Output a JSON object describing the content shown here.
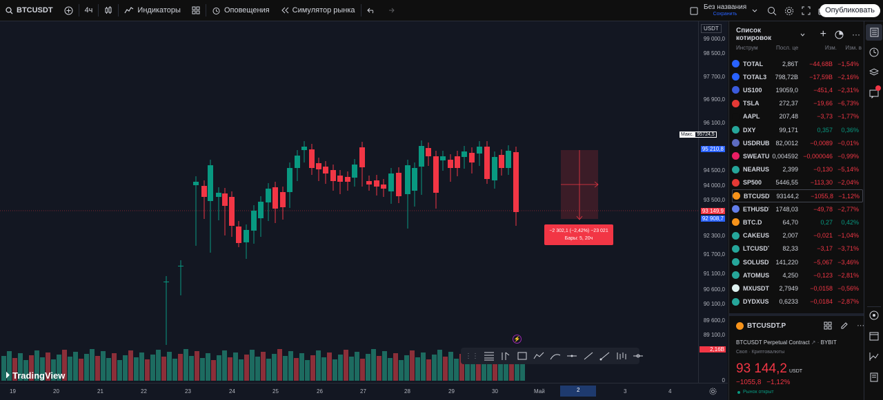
{
  "topbar": {
    "symbol": "BTCUSDT",
    "interval": "4ч",
    "indicators": "Индикаторы",
    "alerts": "Оповещения",
    "replay": "Симулятор рынка",
    "layout_name": "Без названия",
    "layout_status": "Сохранить",
    "publish": "Опубликовать"
  },
  "chart": {
    "currency": "USDT",
    "max_label": "Макс.",
    "max_value": "95724,5",
    "price_labels": [
      "99 000,0",
      "98 500,0",
      "97 700,0",
      "96 900,0",
      "96 100,0",
      "95 210,8",
      "94 500,0",
      "94 000,0",
      "93 500,0",
      "93 149,9",
      "92 908,7",
      "92 300,0",
      "91 700,0",
      "91 100,0",
      "90 600,0",
      "90 100,0",
      "89 600,0",
      "89 100,0"
    ],
    "volume_label": "2,16B",
    "volume_zero": "0",
    "time_labels": [
      "19",
      "20",
      "21",
      "22",
      "23",
      "24",
      "25",
      "26",
      "27",
      "28",
      "29",
      "30",
      "Май",
      "2",
      "3",
      "4"
    ],
    "measure_line1": "−2 302,1 (−2,42%) −23 021",
    "measure_line2": "Бары: 5, 20ч",
    "logo": "TradingView"
  },
  "watchlist": {
    "title": "Список котировок",
    "headers": [
      "Инструм",
      "Посл. це",
      "Изм.",
      "Изм. в"
    ],
    "rows": [
      {
        "sym": "TOTAL",
        "last": "2,86T",
        "chg": "−44,68B",
        "chp": "−1,54%",
        "color": "#2962ff",
        "dir": "neg"
      },
      {
        "sym": "TOTAL3",
        "last": "798,72B",
        "chg": "−17,59B",
        "chp": "−2,16%",
        "color": "#2962ff",
        "dir": "neg"
      },
      {
        "sym": "US100",
        "last": "19059,0",
        "chg": "−451,4",
        "chp": "−2,31%",
        "color": "#3b5bdb",
        "dir": "neg"
      },
      {
        "sym": "TSLA",
        "last": "272,37",
        "chg": "−19,66",
        "chp": "−6,73%",
        "color": "#e53935",
        "dir": "neg"
      },
      {
        "sym": "AAPL",
        "last": "207,48",
        "chg": "−3,73",
        "chp": "−1,77%",
        "color": "#0f0f0f",
        "dir": "neg"
      },
      {
        "sym": "DXY",
        "last": "99,171",
        "chg": "0,357",
        "chp": "0,36%",
        "color": "#26a69a",
        "dir": "pos"
      },
      {
        "sym": "USDRUB",
        "last": "82,0012",
        "chg": "−0,0089",
        "chp": "−0,01%",
        "color": "#5c6bc0",
        "dir": "neg"
      },
      {
        "sym": "SWEATUSDT",
        "last": "0,004592",
        "chg": "−0,000046",
        "chp": "−0,99%",
        "color": "#e91e63",
        "dir": "neg"
      },
      {
        "sym": "NEARUSDT",
        "last": "2,399",
        "chg": "−0,130",
        "chp": "−5,14%",
        "color": "#26a69a",
        "dir": "neg"
      },
      {
        "sym": "SP500",
        "last": "5446,55",
        "chg": "−113,30",
        "chp": "−2,04%",
        "color": "#e53935",
        "dir": "neg"
      },
      {
        "sym": "BTCUSDT",
        "last": "93144,2",
        "chg": "−1055,8",
        "chp": "−1,12%",
        "color": "#f7931a",
        "dir": "neg"
      },
      {
        "sym": "ETHUSDT",
        "last": "1748,03",
        "chg": "−49,78",
        "chp": "−2,77%",
        "color": "#627eea",
        "dir": "neg"
      },
      {
        "sym": "BTC.D",
        "last": "64,70",
        "chg": "0,27",
        "chp": "0,42%",
        "color": "#f7931a",
        "dir": "pos"
      },
      {
        "sym": "CAKEUSDT",
        "last": "2,007",
        "chg": "−0,021",
        "chp": "−1,04%",
        "color": "#26a69a",
        "dir": "neg"
      },
      {
        "sym": "LTCUSDT",
        "last": "82,33",
        "chg": "−3,17",
        "chp": "−3,71%",
        "color": "#26a69a",
        "dir": "neg"
      },
      {
        "sym": "SOLUSDT",
        "last": "141,220",
        "chg": "−5,067",
        "chp": "−3,46%",
        "color": "#26a69a",
        "dir": "neg"
      },
      {
        "sym": "ATOMUSDT",
        "last": "4,250",
        "chg": "−0,123",
        "chp": "−2,81%",
        "color": "#26a69a",
        "dir": "neg"
      },
      {
        "sym": "MXUSDT",
        "last": "2,7949",
        "chg": "−0,0158",
        "chp": "−0,56%",
        "color": "#e0f2f1",
        "dir": "neg"
      },
      {
        "sym": "DYDXUSDT",
        "last": "0,6233",
        "chg": "−0,0184",
        "chp": "−2,87%",
        "color": "#26a69a",
        "dir": "neg"
      }
    ]
  },
  "details": {
    "symbol": "BTCUSDT.P",
    "description": "BTCUSDT Perpetual Contract",
    "exchange": "BYBIT",
    "category": "Своп · Криптовалюты",
    "price": "93 144,2",
    "currency": "USDT",
    "change": "−1055,8",
    "change_pct": "−1,12%",
    "market_status": "Рынок открыт"
  },
  "colors": {
    "up": "#089981",
    "down": "#f23645",
    "accent": "#2962ff"
  }
}
